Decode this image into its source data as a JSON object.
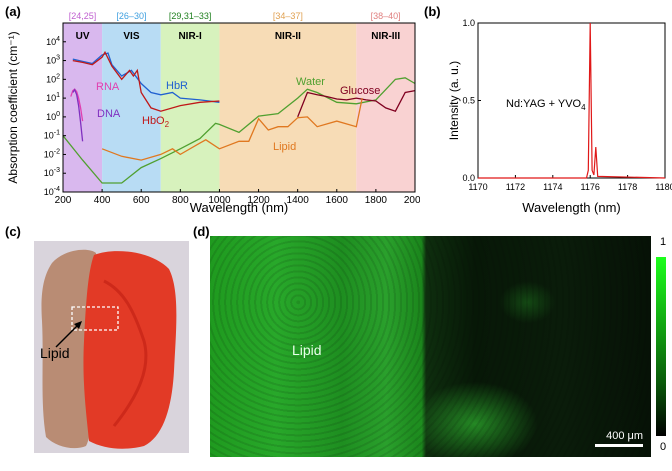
{
  "panels": {
    "a": "(a)",
    "b": "(b)",
    "c": "(c)",
    "d": "(d)"
  },
  "panel_a": {
    "ylabel": "Absorption coefficient (cm⁻¹)",
    "xlabel": "Wavelength (nm)",
    "bands": [
      {
        "name": "UV",
        "ref": "[24,25]",
        "range": [
          200,
          400
        ],
        "color": "#d9b8ee",
        "ref_color": "#c060d0"
      },
      {
        "name": "VIS",
        "ref": "[26–30]",
        "range": [
          400,
          700
        ],
        "color": "#b8dcf4",
        "ref_color": "#40a0e0"
      },
      {
        "name": "NIR-I",
        "ref": "[29,31–33]",
        "range": [
          700,
          1000
        ],
        "color": "#d7f2bd",
        "ref_color": "#208020"
      },
      {
        "name": "NIR-II",
        "ref": "[34–37]",
        "range": [
          1000,
          1700
        ],
        "color": "#f7dcb6",
        "ref_color": "#e0a050"
      },
      {
        "name": "NIR-III",
        "ref": "[38–40]",
        "range": [
          1700,
          2000
        ],
        "color": "#f9d2d2",
        "ref_color": "#e08080"
      }
    ],
    "labels": {
      "rna": "RNA",
      "dna": "DNA",
      "hbr": "HbR",
      "hbo2": "HbO",
      "hbo2_sub": "2",
      "water": "Water",
      "glucose": "Glucose",
      "lipid": "Lipid"
    },
    "label_colors": {
      "rna": "#e040b0",
      "dna": "#8030c0",
      "hbr": "#2060d0",
      "hbo2": "#c01818",
      "water": "#50a030",
      "glucose": "#800020",
      "lipid": "#e07820"
    },
    "xticks": [
      "200",
      "400",
      "600",
      "800",
      "1000",
      "1200",
      "1400",
      "1600",
      "1800",
      "2000"
    ],
    "yticks": [
      {
        "base": "10",
        "exp": "4"
      },
      {
        "base": "10",
        "exp": "3"
      },
      {
        "base": "10",
        "exp": "2"
      },
      {
        "base": "10",
        "exp": "1"
      },
      {
        "base": "10",
        "exp": "0"
      },
      {
        "base": "10",
        "exp": "-1"
      },
      {
        "base": "10",
        "exp": "-2"
      },
      {
        "base": "10",
        "exp": "-3"
      },
      {
        "base": "10",
        "exp": "-4"
      }
    ]
  },
  "panel_b": {
    "ylabel": "Intensity (a. u.)",
    "xlabel": "Wavelength (nm)",
    "annotation": "Nd:YAG + YVO",
    "annotation_sub": "4",
    "line_color": "#e01818",
    "xticks": [
      "1170",
      "1172",
      "1174",
      "1176",
      "1178",
      "1180"
    ],
    "yticks": [
      "0.0",
      "0.5",
      "1.0"
    ]
  },
  "panel_c": {
    "lipid_label": "Lipid"
  },
  "panel_d": {
    "lipid_label": "Lipid",
    "scale_text": "400 μm",
    "colorbar_top": "1",
    "colorbar_bottom": "0"
  },
  "chart_data": [
    {
      "type": "line",
      "xlabel": "Wavelength (nm)",
      "ylabel": "Absorption coefficient (cm⁻¹)",
      "xlim": [
        200,
        2000
      ],
      "ylim": [
        0.0001,
        100000
      ],
      "yscale": "log",
      "series": [
        {
          "name": "RNA",
          "x": [
            240,
            250,
            260,
            270,
            280,
            290,
            300
          ],
          "y": [
            12,
            25,
            30,
            22,
            10,
            3,
            0.6
          ]
        },
        {
          "name": "DNA",
          "x": [
            250,
            260,
            270,
            280,
            290,
            300
          ],
          "y": [
            20,
            28,
            15,
            4,
            0.5,
            0.05
          ]
        },
        {
          "name": "HbR",
          "x": [
            250,
            300,
            350,
            400,
            430,
            450,
            500,
            550,
            600,
            650,
            700,
            760,
            800,
            900,
            1000
          ],
          "y": [
            1200,
            900,
            700,
            2000,
            2500,
            600,
            150,
            300,
            60,
            20,
            15,
            20,
            10,
            8,
            6
          ]
        },
        {
          "name": "HbO",
          "x": [
            250,
            300,
            350,
            400,
            415,
            450,
            500,
            540,
            560,
            580,
            600,
            650,
            700,
            800,
            900,
            1000
          ],
          "y": [
            1000,
            800,
            600,
            1500,
            2800,
            500,
            100,
            300,
            150,
            300,
            20,
            3,
            2,
            4,
            6,
            7
          ]
        },
        {
          "name": "Water",
          "x": [
            200,
            300,
            400,
            500,
            600,
            700,
            800,
            900,
            980,
            1000,
            1100,
            1200,
            1300,
            1400,
            1450,
            1500,
            1600,
            1700,
            1800,
            1900,
            1950,
            2000
          ],
          "y": [
            0.1,
            0.005,
            0.0003,
            0.0003,
            0.002,
            0.006,
            0.02,
            0.07,
            0.45,
            0.4,
            0.15,
            1.1,
            1.5,
            10,
            30,
            20,
            6,
            5,
            8,
            100,
            120,
            60
          ]
        },
        {
          "name": "Glucose",
          "x": [
            1400,
            1450,
            1500,
            1550,
            1600,
            1650,
            1700,
            1750,
            1800,
            1850,
            1900,
            1950,
            2000
          ],
          "y": [
            1,
            20,
            15,
            12,
            9,
            8,
            10,
            8,
            7,
            3,
            2,
            20,
            25
          ]
        },
        {
          "name": "Lipid",
          "x": [
            400,
            500,
            600,
            700,
            760,
            800,
            900,
            930,
            1000,
            1100,
            1150,
            1200,
            1250,
            1300,
            1350,
            1400,
            1450,
            1500,
            1600,
            1700,
            1730
          ],
          "y": [
            0.02,
            0.008,
            0.005,
            0.01,
            0.02,
            0.01,
            0.04,
            0.06,
            0.02,
            0.05,
            0.05,
            0.8,
            0.2,
            0.3,
            0.3,
            0.9,
            1,
            0.3,
            0.6,
            0.3,
            10
          ]
        }
      ]
    },
    {
      "type": "line",
      "xlabel": "Wavelength (nm)",
      "ylabel": "Intensity (a. u.)",
      "xlim": [
        1170,
        1180
      ],
      "ylim": [
        0,
        1
      ],
      "series": [
        {
          "x": [
            1170,
            1175.8,
            1175.9,
            1176.0,
            1176.1,
            1176.2,
            1176.3,
            1176.4,
            1180
          ],
          "y": [
            0.0,
            0.0,
            0.05,
            1.0,
            0.05,
            0.02,
            0.2,
            0.01,
            0.0
          ]
        }
      ]
    }
  ]
}
